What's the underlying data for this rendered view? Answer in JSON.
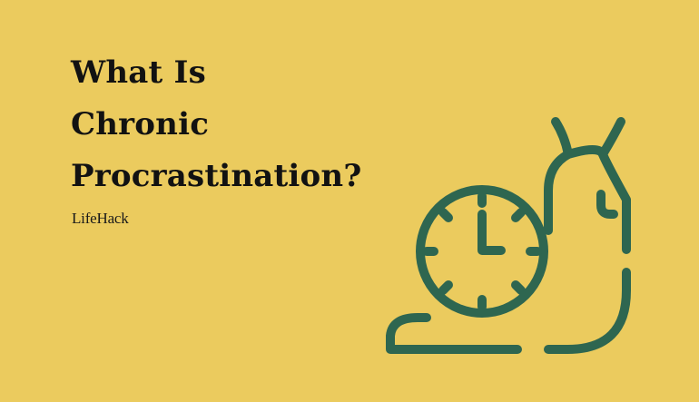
{
  "title_lines": [
    "What Is",
    "Chronic",
    "Procrastination?"
  ],
  "brand": "LifeHack",
  "colors": {
    "background": "#EBCB5E",
    "title_text": "#121212",
    "icon_stroke": "#2E6650"
  },
  "icon": "snail-clock-icon"
}
